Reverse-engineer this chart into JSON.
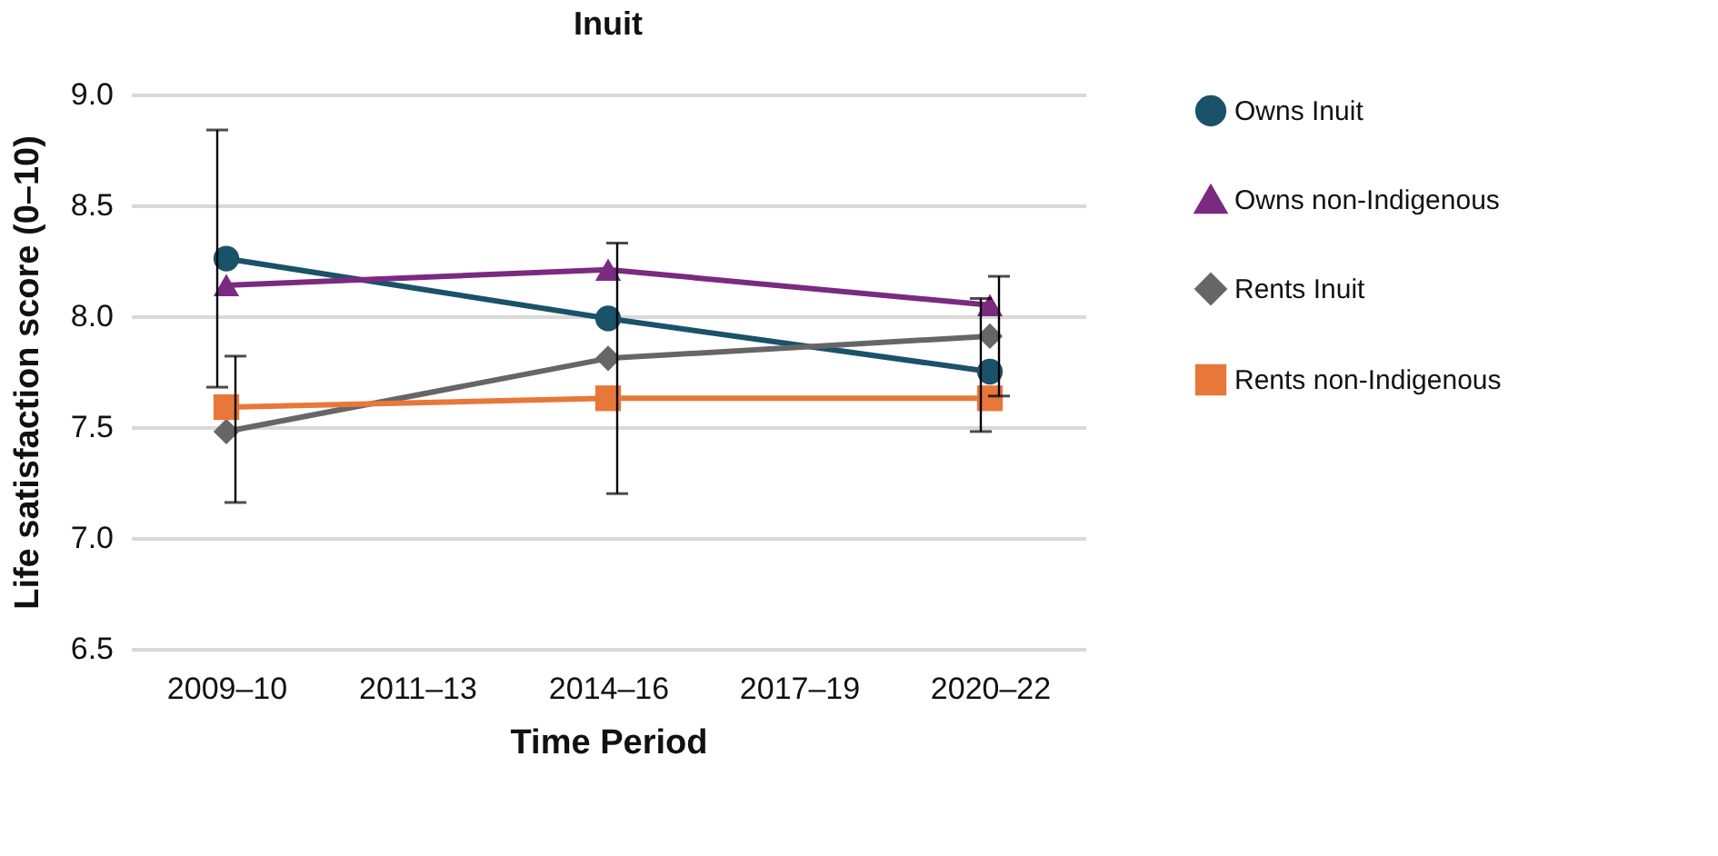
{
  "chart_data": {
    "type": "line",
    "title": "Inuit",
    "xlabel": "Time Period",
    "ylabel": "Life satisfaction score (0–10)",
    "categories": [
      "2009–10",
      "2011–13",
      "2014–16",
      "2017–19",
      "2020–22"
    ],
    "series": [
      {
        "name": "Owns Inuit",
        "color": "#1a5269",
        "marker": "circle",
        "values": [
          8.26,
          null,
          7.99,
          null,
          7.75
        ],
        "errors": [
          [
            7.68,
            8.84
          ],
          null,
          null,
          null,
          [
            7.48,
            8.08
          ]
        ]
      },
      {
        "name": "Owns non-Indigenous",
        "color": "#7b2a80",
        "marker": "triangle",
        "values": [
          8.14,
          null,
          8.21,
          null,
          8.05
        ]
      },
      {
        "name": "Rents Inuit",
        "color": "#666666",
        "marker": "diamond",
        "values": [
          7.48,
          null,
          7.81,
          null,
          7.91
        ],
        "errors": [
          [
            7.16,
            7.82
          ],
          null,
          [
            7.2,
            8.33
          ],
          null,
          [
            7.64,
            8.18
          ]
        ]
      },
      {
        "name": "Rents non-Indigenous",
        "color": "#e8773a",
        "marker": "square",
        "values": [
          7.59,
          null,
          7.63,
          null,
          7.63
        ]
      }
    ],
    "ylim": [
      6.5,
      9.0
    ],
    "yticks": [
      {
        "value": 6.5,
        "label": "6.5"
      },
      {
        "value": 7.0,
        "label": "7.0"
      },
      {
        "value": 7.5,
        "label": "7.5"
      },
      {
        "value": 8.0,
        "label": "8.0"
      },
      {
        "value": 8.5,
        "label": "8.5"
      },
      {
        "value": 9.0,
        "label": "9.0"
      }
    ],
    "grid": "y",
    "legend": "right",
    "line_style": "solid"
  }
}
